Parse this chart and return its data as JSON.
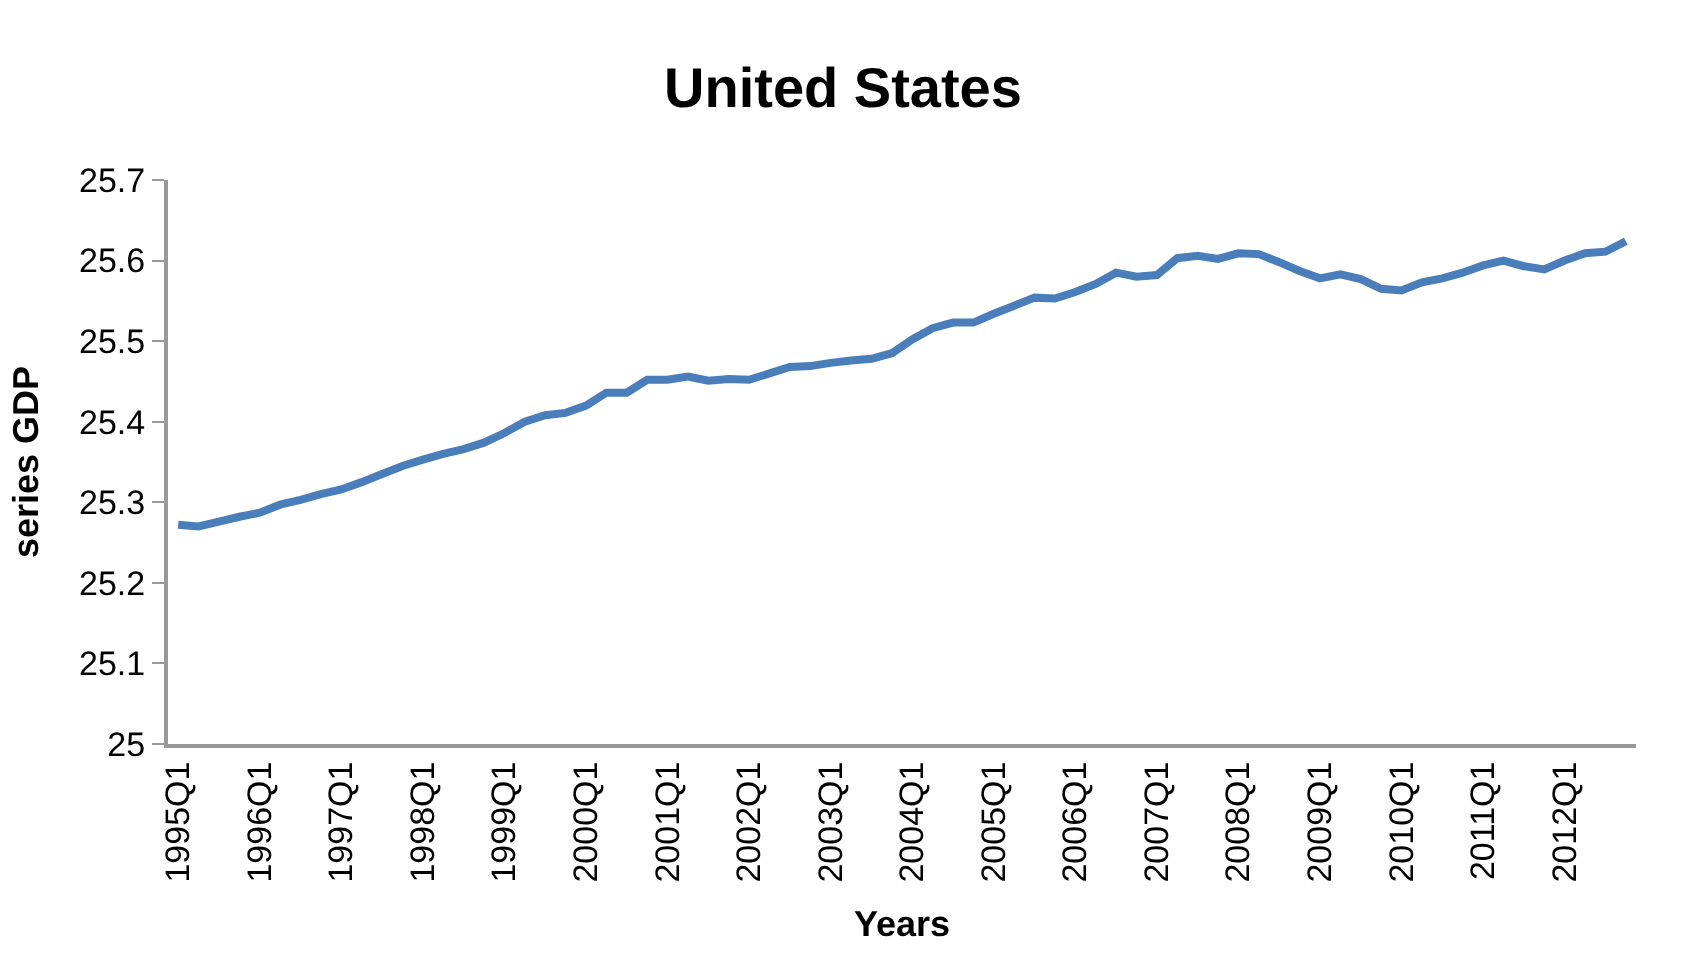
{
  "chart_data": {
    "type": "line",
    "title": "United States",
    "xlabel": "Years",
    "ylabel": "series GDP",
    "categories": [
      "1995Q1",
      null,
      null,
      null,
      "1996Q1",
      null,
      null,
      null,
      "1997Q1",
      null,
      null,
      null,
      "1998Q1",
      null,
      null,
      null,
      "1999Q1",
      null,
      null,
      null,
      "2000Q1",
      null,
      null,
      null,
      "2001Q1",
      null,
      null,
      null,
      "2002Q1",
      null,
      null,
      null,
      "2003Q1",
      null,
      null,
      null,
      "2004Q1",
      null,
      null,
      null,
      "2005Q1",
      null,
      null,
      null,
      "2006Q1",
      null,
      null,
      null,
      "2007Q1",
      null,
      null,
      null,
      "2008Q1",
      null,
      null,
      null,
      "2009Q1",
      null,
      null,
      null,
      "2010Q1",
      null,
      null,
      null,
      "2011Q1",
      null,
      null,
      null,
      "2012Q1",
      null,
      null,
      null
    ],
    "series": [
      {
        "color": "#4a7ebb",
        "values": [
          25.272,
          25.27,
          25.276,
          25.282,
          25.287,
          25.297,
          25.303,
          25.31,
          25.316,
          25.325,
          25.335,
          25.345,
          25.353,
          25.36,
          25.366,
          25.374,
          25.386,
          25.4,
          25.408,
          25.411,
          25.42,
          25.436,
          25.436,
          25.452,
          25.452,
          25.456,
          25.451,
          25.453,
          25.452,
          25.46,
          25.468,
          25.469,
          25.473,
          25.476,
          25.478,
          25.485,
          25.502,
          25.516,
          25.523,
          25.523,
          25.534,
          25.544,
          25.554,
          25.553,
          25.561,
          25.571,
          25.585,
          25.58,
          25.582,
          25.603,
          25.606,
          25.602,
          25.609,
          25.608,
          25.598,
          25.587,
          25.578,
          25.583,
          25.577,
          25.565,
          25.563,
          25.573,
          25.578,
          25.585,
          25.594,
          25.6,
          25.593,
          25.589,
          25.6,
          25.609,
          25.611,
          25.624
        ]
      }
    ],
    "ylim": [
      25,
      25.7
    ],
    "yticks": [
      25,
      25.1,
      25.2,
      25.3,
      25.4,
      25.5,
      25.6,
      25.7
    ],
    "marker": "none",
    "line_style": "solid"
  }
}
